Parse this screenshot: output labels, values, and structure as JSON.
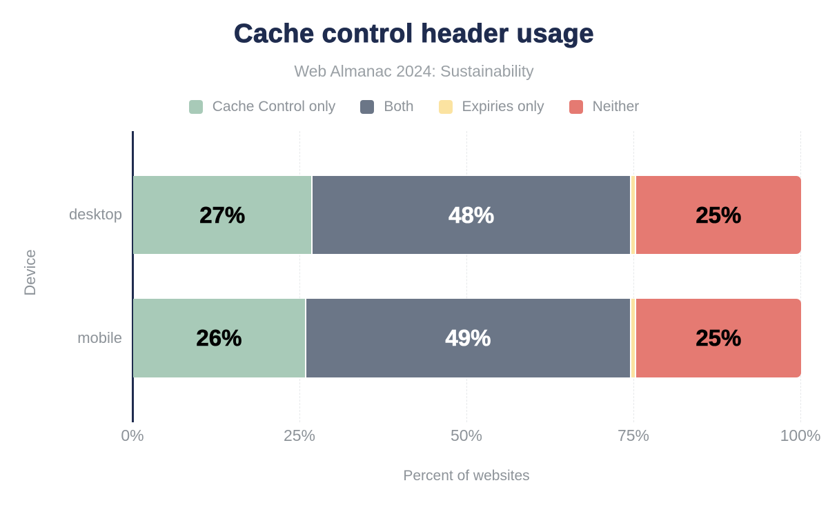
{
  "chart_data": {
    "type": "bar",
    "variant": "horizontal_stacked",
    "title": "Cache control header usage",
    "subtitle": "Web Almanac 2024: Sustainability",
    "categories": [
      "desktop",
      "mobile"
    ],
    "series": [
      {
        "name": "Cache Control only",
        "color": "#a8cab8",
        "label_color": "#000000",
        "values": [
          27,
          26
        ],
        "labels": [
          "27%",
          "26%"
        ]
      },
      {
        "name": "Both",
        "color": "#6b7687",
        "label_color": "#ffffff",
        "values": [
          48,
          49
        ],
        "labels": [
          "48%",
          "49%"
        ]
      },
      {
        "name": "Expiries only",
        "color": "#fbe3a1",
        "label_color": "#000000",
        "values": [
          0.5,
          0.5
        ],
        "labels": [
          "",
          ""
        ]
      },
      {
        "name": "Neither",
        "color": "#e57a72",
        "label_color": "#000000",
        "values": [
          25,
          25
        ],
        "labels": [
          "25%",
          "25%"
        ]
      }
    ],
    "xlabel": "Percent of websites",
    "ylabel": "Device",
    "xlim": [
      0,
      100
    ],
    "x_ticks": [
      {
        "value": 0,
        "label": "0%"
      },
      {
        "value": 25,
        "label": "25%"
      },
      {
        "value": 50,
        "label": "50%"
      },
      {
        "value": 75,
        "label": "75%"
      },
      {
        "value": 100,
        "label": "100%"
      }
    ],
    "grid": "vertical_dashed",
    "legend_position": "top"
  },
  "colors": {
    "title": "#1f2c4f",
    "subtitle": "#9aa0a5",
    "axis_text": "#8d9399",
    "axis_line": "#1f2c4f",
    "gridline": "#e6e8ea",
    "background": "#ffffff"
  }
}
